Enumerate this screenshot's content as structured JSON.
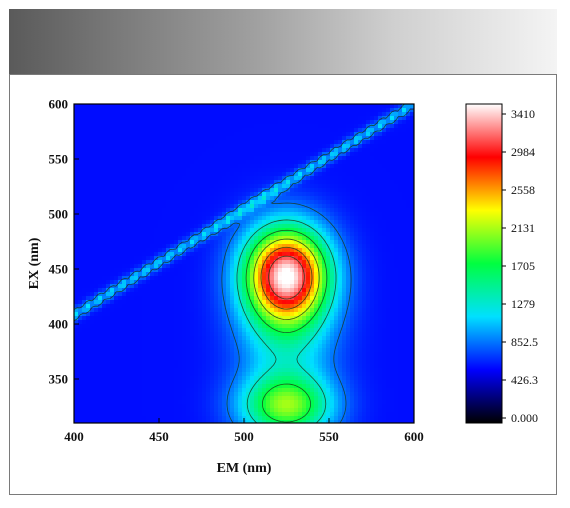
{
  "chart_data": {
    "type": "heatmap",
    "subtype": "excitation-emission contour map",
    "xlabel": "EM (nm)",
    "ylabel": "EX (nm)",
    "xlim": [
      400,
      600
    ],
    "ylim": [
      310,
      600
    ],
    "x_ticks": [
      400,
      450,
      500,
      550,
      600
    ],
    "y_ticks": [
      350,
      400,
      450,
      500,
      550,
      600
    ],
    "colorbar": {
      "min": 0,
      "max": 3410,
      "tick_labels": [
        "0.000",
        "426.3",
        "852.5",
        "1279",
        "1705",
        "2131",
        "2558",
        "2984",
        "3410"
      ],
      "colormap": [
        "#000000",
        "#0000ff",
        "#00e0ff",
        "#00ff40",
        "#ffff00",
        "#ff0000",
        "#ffffff"
      ]
    },
    "background_level": 600,
    "peaks": [
      {
        "em": 525,
        "ex": 445,
        "intensity": 3300
      },
      {
        "em": 525,
        "ex": 325,
        "intensity": 1900
      }
    ],
    "scatter_band": {
      "em_start": 400,
      "ex_start": 408,
      "em_end": 600,
      "ex_end": 600,
      "intensity": 1150
    },
    "contour_levels": [
      850,
      1280,
      1700,
      2130,
      2560,
      2980
    ]
  }
}
